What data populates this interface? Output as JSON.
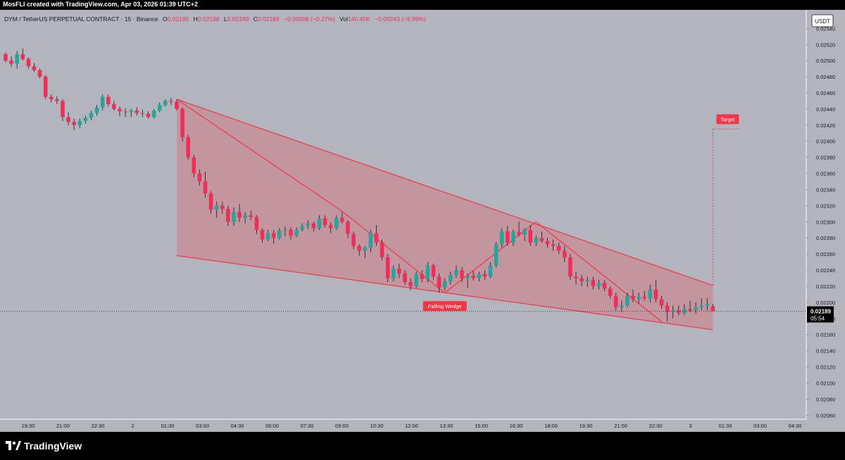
{
  "header": {
    "credit": "MosFLI created with TradingView.com, Apr 03, 2026 01:39 UTC+2"
  },
  "legend": {
    "symbol": "DYM / TetherUS PERPETUAL CONTRACT · 15 · Binance",
    "o_label": "O",
    "o_value": "0.02195",
    "h_label": "H",
    "h_value": "0.02198",
    "l_label": "L",
    "l_value": "0.02189",
    "c_label": "C",
    "c_value": "0.02189",
    "change": "−0.00006 (−0.27%)",
    "vol_label": "Vol",
    "vol_value": "140.45K",
    "vol_change": "−0.00243 (−9.99%)"
  },
  "currency_badge": "USDT",
  "price_label": {
    "price": "0.02189",
    "countdown": "05:54"
  },
  "footer": {
    "brand": "TradingView",
    "logo_icon": "tradingview-logo-icon"
  },
  "colors": {
    "background": "#b2b5be",
    "up": "#26a69a",
    "down": "#ef2f5a",
    "pattern": "#f23645",
    "pattern_fill": "#f2364540",
    "axis_text": "#131722"
  },
  "chart_data": {
    "type": "candlestick",
    "y_axis": {
      "ylim": [
        0.02055,
        0.02563
      ],
      "ticks": [
        "0.02540",
        "0.02520",
        "0.02500",
        "0.02480",
        "0.02460",
        "0.02440",
        "0.02420",
        "0.02400",
        "0.02380",
        "0.02360",
        "0.02340",
        "0.02320",
        "0.02300",
        "0.02280",
        "0.02260",
        "0.02240",
        "0.02220",
        "0.02200",
        "0.02180",
        "0.02160",
        "0.02140",
        "0.02120",
        "0.02100",
        "0.02080",
        "0.02060"
      ],
      "position": "right"
    },
    "x_axis": {
      "ticks": [
        "19:30",
        "21:00",
        "22:30",
        "2",
        "01:30",
        "03:00",
        "04:30",
        "06:00",
        "07:30",
        "09:00",
        "10:30",
        "12:00",
        "13:30",
        "15:00",
        "16:30",
        "18:00",
        "19:30",
        "21:00",
        "22:30",
        "3",
        "01:30",
        "03:00",
        "04:30"
      ]
    },
    "candles": [
      [
        0.02508,
        0.0251,
        0.02498,
        0.025
      ],
      [
        0.025,
        0.02505,
        0.02492,
        0.02496
      ],
      [
        0.02496,
        0.02512,
        0.0249,
        0.02508
      ],
      [
        0.02508,
        0.02515,
        0.025,
        0.02502
      ],
      [
        0.02502,
        0.02504,
        0.0249,
        0.02493
      ],
      [
        0.02493,
        0.02497,
        0.02486,
        0.02488
      ],
      [
        0.02488,
        0.0249,
        0.02478,
        0.0248
      ],
      [
        0.0248,
        0.02482,
        0.02452,
        0.02455
      ],
      [
        0.02455,
        0.02458,
        0.02448,
        0.02452
      ],
      [
        0.02452,
        0.02456,
        0.02446,
        0.0245
      ],
      [
        0.0245,
        0.02452,
        0.02425,
        0.0243
      ],
      [
        0.0243,
        0.02436,
        0.0242,
        0.02424
      ],
      [
        0.02424,
        0.02428,
        0.02414,
        0.0242
      ],
      [
        0.0242,
        0.02428,
        0.02416,
        0.02425
      ],
      [
        0.02425,
        0.02432,
        0.02422,
        0.02429
      ],
      [
        0.02429,
        0.02438,
        0.02426,
        0.02435
      ],
      [
        0.02435,
        0.02445,
        0.02432,
        0.02442
      ],
      [
        0.02442,
        0.02458,
        0.02438,
        0.02455
      ],
      [
        0.02455,
        0.02458,
        0.02443,
        0.02446
      ],
      [
        0.02446,
        0.0245,
        0.02438,
        0.0244
      ],
      [
        0.0244,
        0.02443,
        0.02431,
        0.02437
      ],
      [
        0.02437,
        0.02441,
        0.0243,
        0.02436
      ],
      [
        0.02436,
        0.0244,
        0.0243,
        0.02438
      ],
      [
        0.02438,
        0.02442,
        0.02432,
        0.02435
      ],
      [
        0.02435,
        0.02439,
        0.0243,
        0.02434
      ],
      [
        0.02434,
        0.02437,
        0.02428,
        0.0243
      ],
      [
        0.0243,
        0.0244,
        0.02428,
        0.02438
      ],
      [
        0.02438,
        0.02448,
        0.02436,
        0.02445
      ],
      [
        0.02445,
        0.02452,
        0.02443,
        0.0245
      ],
      [
        0.0245,
        0.02454,
        0.02445,
        0.02449
      ],
      [
        0.02449,
        0.02452,
        0.02438,
        0.0244
      ],
      [
        0.0244,
        0.02442,
        0.024,
        0.02405
      ],
      [
        0.02405,
        0.02408,
        0.02377,
        0.0238
      ],
      [
        0.0238,
        0.02383,
        0.02355,
        0.0236
      ],
      [
        0.0236,
        0.02365,
        0.02345,
        0.0235
      ],
      [
        0.0235,
        0.02362,
        0.0233,
        0.02335
      ],
      [
        0.02335,
        0.02338,
        0.0231,
        0.02315
      ],
      [
        0.02315,
        0.02325,
        0.02305,
        0.0232
      ],
      [
        0.0232,
        0.02325,
        0.0231,
        0.02316
      ],
      [
        0.02316,
        0.0232,
        0.02295,
        0.023
      ],
      [
        0.023,
        0.02318,
        0.02295,
        0.02312
      ],
      [
        0.02312,
        0.02322,
        0.023,
        0.02305
      ],
      [
        0.02305,
        0.02312,
        0.02298,
        0.02308
      ],
      [
        0.02308,
        0.02314,
        0.02302,
        0.02306
      ],
      [
        0.02306,
        0.02308,
        0.02285,
        0.0229
      ],
      [
        0.0229,
        0.02292,
        0.02274,
        0.02278
      ],
      [
        0.02278,
        0.0229,
        0.02276,
        0.02286
      ],
      [
        0.02286,
        0.0229,
        0.02273,
        0.0228
      ],
      [
        0.0228,
        0.02292,
        0.02278,
        0.02289
      ],
      [
        0.02289,
        0.02294,
        0.02282,
        0.0229
      ],
      [
        0.0229,
        0.02293,
        0.02278,
        0.02283
      ],
      [
        0.02283,
        0.02293,
        0.02281,
        0.0229
      ],
      [
        0.0229,
        0.02298,
        0.02288,
        0.02295
      ],
      [
        0.02295,
        0.02302,
        0.02291,
        0.02298
      ],
      [
        0.02298,
        0.023,
        0.02288,
        0.02292
      ],
      [
        0.02292,
        0.02308,
        0.0229,
        0.02304
      ],
      [
        0.02304,
        0.02308,
        0.02293,
        0.02296
      ],
      [
        0.02296,
        0.02299,
        0.02286,
        0.02292
      ],
      [
        0.02292,
        0.02308,
        0.0229,
        0.02305
      ],
      [
        0.02305,
        0.02312,
        0.02298,
        0.023
      ],
      [
        0.023,
        0.02302,
        0.0228,
        0.02285
      ],
      [
        0.02285,
        0.02288,
        0.02266,
        0.0227
      ],
      [
        0.0227,
        0.02272,
        0.02258,
        0.02264
      ],
      [
        0.02264,
        0.0227,
        0.02255,
        0.02268
      ],
      [
        0.02268,
        0.0229,
        0.02262,
        0.02286
      ],
      [
        0.02286,
        0.02296,
        0.0227,
        0.02274
      ],
      [
        0.02274,
        0.02278,
        0.02252,
        0.02256
      ],
      [
        0.02256,
        0.0226,
        0.02225,
        0.0223
      ],
      [
        0.0223,
        0.02246,
        0.02226,
        0.02242
      ],
      [
        0.02242,
        0.02248,
        0.0223,
        0.02236
      ],
      [
        0.02236,
        0.0224,
        0.02222,
        0.02225
      ],
      [
        0.02225,
        0.0223,
        0.02215,
        0.0222
      ],
      [
        0.0222,
        0.02238,
        0.02218,
        0.02235
      ],
      [
        0.02235,
        0.0224,
        0.02225,
        0.02229
      ],
      [
        0.02229,
        0.0225,
        0.02225,
        0.02246
      ],
      [
        0.02246,
        0.02248,
        0.02228,
        0.02232
      ],
      [
        0.02232,
        0.02236,
        0.02212,
        0.02218
      ],
      [
        0.02218,
        0.0223,
        0.02215,
        0.02226
      ],
      [
        0.02226,
        0.02238,
        0.02222,
        0.02234
      ],
      [
        0.02234,
        0.02246,
        0.0223,
        0.0224
      ],
      [
        0.0224,
        0.02244,
        0.02225,
        0.0223
      ],
      [
        0.0223,
        0.02236,
        0.02218,
        0.02233
      ],
      [
        0.02233,
        0.02239,
        0.02227,
        0.0223
      ],
      [
        0.0223,
        0.02238,
        0.02226,
        0.02235
      ],
      [
        0.02235,
        0.0224,
        0.02228,
        0.02232
      ],
      [
        0.02232,
        0.0225,
        0.0223,
        0.02246
      ],
      [
        0.02246,
        0.02275,
        0.02243,
        0.02272
      ],
      [
        0.02272,
        0.02292,
        0.02268,
        0.02288
      ],
      [
        0.02288,
        0.02295,
        0.0227,
        0.02274
      ],
      [
        0.02274,
        0.0229,
        0.0227,
        0.02287
      ],
      [
        0.02287,
        0.023,
        0.02282,
        0.02284
      ],
      [
        0.02284,
        0.02292,
        0.02276,
        0.0229
      ],
      [
        0.0229,
        0.02296,
        0.0227,
        0.02274
      ],
      [
        0.02274,
        0.02283,
        0.0227,
        0.0228
      ],
      [
        0.0228,
        0.02288,
        0.02274,
        0.02276
      ],
      [
        0.02276,
        0.0228,
        0.02268,
        0.02272
      ],
      [
        0.02272,
        0.02278,
        0.02264,
        0.0227
      ],
      [
        0.0227,
        0.02274,
        0.0226,
        0.02264
      ],
      [
        0.02264,
        0.0227,
        0.0225,
        0.02256
      ],
      [
        0.02256,
        0.0226,
        0.02228,
        0.02232
      ],
      [
        0.02232,
        0.02238,
        0.02222,
        0.0223
      ],
      [
        0.0223,
        0.02234,
        0.0222,
        0.02226
      ],
      [
        0.02226,
        0.02232,
        0.02219,
        0.02228
      ],
      [
        0.02228,
        0.02232,
        0.02216,
        0.0222
      ],
      [
        0.0222,
        0.02228,
        0.02216,
        0.02224
      ],
      [
        0.02224,
        0.02228,
        0.02214,
        0.02217
      ],
      [
        0.02217,
        0.0222,
        0.02205,
        0.02208
      ],
      [
        0.02208,
        0.02212,
        0.0219,
        0.02194
      ],
      [
        0.02194,
        0.02202,
        0.02188,
        0.02196
      ],
      [
        0.02196,
        0.02212,
        0.02194,
        0.02208
      ],
      [
        0.02208,
        0.02216,
        0.022,
        0.02204
      ],
      [
        0.02204,
        0.02212,
        0.02198,
        0.02207
      ],
      [
        0.02207,
        0.02214,
        0.02202,
        0.02205
      ],
      [
        0.02205,
        0.02222,
        0.022,
        0.02216
      ],
      [
        0.02216,
        0.02228,
        0.022,
        0.02204
      ],
      [
        0.02204,
        0.02208,
        0.02192,
        0.02196
      ],
      [
        0.02196,
        0.022,
        0.02176,
        0.02188
      ],
      [
        0.02188,
        0.02196,
        0.0218,
        0.0219
      ],
      [
        0.0219,
        0.02196,
        0.02184,
        0.02187
      ],
      [
        0.02187,
        0.02198,
        0.02184,
        0.02192
      ],
      [
        0.02192,
        0.02202,
        0.02188,
        0.0219
      ],
      [
        0.0219,
        0.022,
        0.02186,
        0.02194
      ],
      [
        0.02194,
        0.02205,
        0.0219,
        0.02196
      ],
      [
        0.02196,
        0.02205,
        0.0219,
        0.02198
      ],
      [
        0.02195,
        0.02198,
        0.02189,
        0.02189
      ]
    ],
    "last_price": 0.02189,
    "annotations": {
      "pattern_label": "Falling Wedge",
      "target_label": "Target",
      "wedge": {
        "upper": {
          "start": [
            30,
            0.02452
          ],
          "end": [
            124,
            0.02221
          ]
        },
        "lower": {
          "start": [
            30,
            0.02258
          ],
          "end": [
            124,
            0.02166
          ]
        }
      },
      "zigzag": [
        [
          30,
          0.02452
        ],
        [
          59,
          0.02313
        ],
        [
          77,
          0.02212
        ],
        [
          93,
          0.023
        ],
        [
          115,
          0.02176
        ]
      ],
      "target": {
        "from": [
          124,
          0.02221
        ],
        "price": 0.02415
      }
    }
  }
}
